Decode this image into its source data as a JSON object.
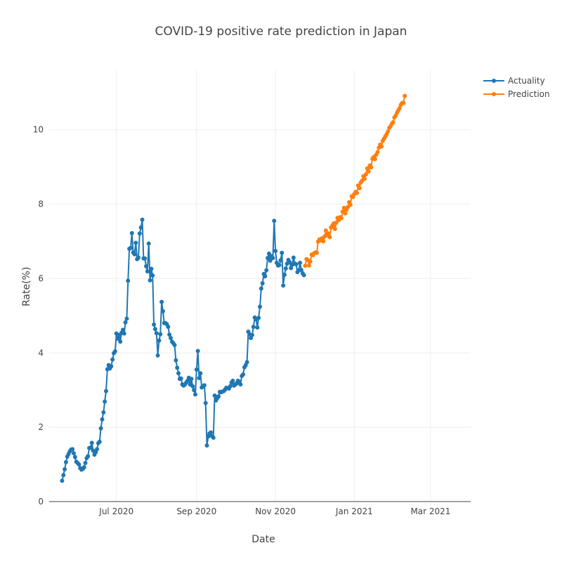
{
  "chart_data": {
    "type": "line",
    "title": "COVID-19 positive rate prediction in Japan",
    "xlabel": "Date",
    "ylabel": "Rate(%)",
    "x_ticks": [
      "Jul 2020",
      "Sep 2020",
      "Nov 2020",
      "Jan 2021",
      "Mar 2021"
    ],
    "y_ticks": [
      0,
      2,
      4,
      6,
      8,
      10
    ],
    "xlim": [
      "2020-05-10",
      "2021-04-01"
    ],
    "ylim": [
      0,
      11.6
    ],
    "grid": true,
    "legend_position": "top-right",
    "series": [
      {
        "name": "Actuality",
        "color": "#1f77b4",
        "points": [
          [
            "2020-05-20",
            0.56
          ],
          [
            "2020-05-21",
            0.71
          ],
          [
            "2020-05-22",
            0.87
          ],
          [
            "2020-05-23",
            1.06
          ],
          [
            "2020-05-24",
            1.21
          ],
          [
            "2020-05-25",
            1.28
          ],
          [
            "2020-05-26",
            1.35
          ],
          [
            "2020-05-27",
            1.4
          ],
          [
            "2020-05-28",
            1.41
          ],
          [
            "2020-05-29",
            1.3
          ],
          [
            "2020-05-30",
            1.2
          ],
          [
            "2020-05-31",
            1.07
          ],
          [
            "2020-06-01",
            1.04
          ],
          [
            "2020-06-02",
            1.0
          ],
          [
            "2020-06-03",
            0.9
          ],
          [
            "2020-06-04",
            0.86
          ],
          [
            "2020-06-05",
            0.88
          ],
          [
            "2020-06-06",
            0.92
          ],
          [
            "2020-06-07",
            1.04
          ],
          [
            "2020-06-08",
            1.17
          ],
          [
            "2020-06-09",
            1.22
          ],
          [
            "2020-06-10",
            1.44
          ],
          [
            "2020-06-11",
            1.45
          ],
          [
            "2020-06-12",
            1.58
          ],
          [
            "2020-06-13",
            1.37
          ],
          [
            "2020-06-14",
            1.26
          ],
          [
            "2020-06-15",
            1.33
          ],
          [
            "2020-06-16",
            1.41
          ],
          [
            "2020-06-17",
            1.57
          ],
          [
            "2020-06-18",
            1.61
          ],
          [
            "2020-06-19",
            1.97
          ],
          [
            "2020-06-20",
            2.21
          ],
          [
            "2020-06-21",
            2.4
          ],
          [
            "2020-06-22",
            2.69
          ],
          [
            "2020-06-23",
            2.97
          ],
          [
            "2020-06-24",
            3.56
          ],
          [
            "2020-06-25",
            3.67
          ],
          [
            "2020-06-26",
            3.58
          ],
          [
            "2020-06-27",
            3.64
          ],
          [
            "2020-06-28",
            3.82
          ],
          [
            "2020-06-29",
            3.99
          ],
          [
            "2020-06-30",
            4.04
          ],
          [
            "2020-07-01",
            4.52
          ],
          [
            "2020-07-02",
            4.38
          ],
          [
            "2020-07-03",
            4.48
          ],
          [
            "2020-07-04",
            4.3
          ],
          [
            "2020-07-05",
            4.54
          ],
          [
            "2020-07-06",
            4.62
          ],
          [
            "2020-07-07",
            4.52
          ],
          [
            "2020-07-08",
            4.82
          ],
          [
            "2020-07-09",
            4.92
          ],
          [
            "2020-07-10",
            5.94
          ],
          [
            "2020-07-11",
            6.8
          ],
          [
            "2020-07-12",
            6.82
          ],
          [
            "2020-07-13",
            7.22
          ],
          [
            "2020-07-14",
            6.7
          ],
          [
            "2020-07-15",
            6.65
          ],
          [
            "2020-07-16",
            6.96
          ],
          [
            "2020-07-17",
            6.52
          ],
          [
            "2020-07-18",
            6.56
          ],
          [
            "2020-07-19",
            7.21
          ],
          [
            "2020-07-20",
            7.37
          ],
          [
            "2020-07-21",
            7.58
          ],
          [
            "2020-07-22",
            6.54
          ],
          [
            "2020-07-23",
            6.54
          ],
          [
            "2020-07-24",
            6.33
          ],
          [
            "2020-07-25",
            6.19
          ],
          [
            "2020-07-26",
            6.94
          ],
          [
            "2020-07-27",
            5.95
          ],
          [
            "2020-07-28",
            6.26
          ],
          [
            "2020-07-29",
            6.08
          ],
          [
            "2020-07-30",
            4.76
          ],
          [
            "2020-07-31",
            4.64
          ],
          [
            "2020-08-01",
            4.53
          ],
          [
            "2020-08-02",
            3.93
          ],
          [
            "2020-08-03",
            4.33
          ],
          [
            "2020-08-04",
            4.5
          ],
          [
            "2020-08-05",
            5.37
          ],
          [
            "2020-08-06",
            5.12
          ],
          [
            "2020-08-07",
            4.8
          ],
          [
            "2020-08-08",
            4.8
          ],
          [
            "2020-08-09",
            4.77
          ],
          [
            "2020-08-10",
            4.7
          ],
          [
            "2020-08-11",
            4.49
          ],
          [
            "2020-08-12",
            4.4
          ],
          [
            "2020-08-13",
            4.3
          ],
          [
            "2020-08-14",
            4.26
          ],
          [
            "2020-08-15",
            4.21
          ],
          [
            "2020-08-16",
            3.8
          ],
          [
            "2020-08-17",
            3.6
          ],
          [
            "2020-08-18",
            3.45
          ],
          [
            "2020-08-19",
            3.3
          ],
          [
            "2020-08-20",
            3.31
          ],
          [
            "2020-08-21",
            3.15
          ],
          [
            "2020-08-22",
            3.12
          ],
          [
            "2020-08-23",
            3.15
          ],
          [
            "2020-08-24",
            3.2
          ],
          [
            "2020-08-25",
            3.25
          ],
          [
            "2020-08-26",
            3.33
          ],
          [
            "2020-08-27",
            3.15
          ],
          [
            "2020-08-28",
            3.3
          ],
          [
            "2020-08-29",
            3.1
          ],
          [
            "2020-08-30",
            3.0
          ],
          [
            "2020-08-31",
            2.88
          ],
          [
            "2020-09-01",
            3.55
          ],
          [
            "2020-09-02",
            4.05
          ],
          [
            "2020-09-03",
            3.32
          ],
          [
            "2020-09-04",
            3.45
          ],
          [
            "2020-09-05",
            3.07
          ],
          [
            "2020-09-06",
            3.1
          ],
          [
            "2020-09-07",
            3.13
          ],
          [
            "2020-09-08",
            2.65
          ],
          [
            "2020-09-09",
            1.51
          ],
          [
            "2020-09-10",
            1.75
          ],
          [
            "2020-09-11",
            1.83
          ],
          [
            "2020-09-12",
            1.86
          ],
          [
            "2020-09-13",
            1.76
          ],
          [
            "2020-09-14",
            1.72
          ],
          [
            "2020-09-15",
            2.85
          ],
          [
            "2020-09-16",
            2.72
          ],
          [
            "2020-09-17",
            2.78
          ],
          [
            "2020-09-18",
            2.83
          ],
          [
            "2020-09-19",
            2.95
          ],
          [
            "2020-09-20",
            2.94
          ],
          [
            "2020-09-21",
            2.96
          ],
          [
            "2020-09-22",
            2.97
          ],
          [
            "2020-09-23",
            3.01
          ],
          [
            "2020-09-24",
            3.06
          ],
          [
            "2020-09-25",
            3.05
          ],
          [
            "2020-09-26",
            3.04
          ],
          [
            "2020-09-27",
            3.1
          ],
          [
            "2020-09-28",
            3.2
          ],
          [
            "2020-09-29",
            3.25
          ],
          [
            "2020-09-30",
            3.12
          ],
          [
            "2020-10-01",
            3.15
          ],
          [
            "2020-10-02",
            3.18
          ],
          [
            "2020-10-03",
            3.25
          ],
          [
            "2020-10-04",
            3.22
          ],
          [
            "2020-10-05",
            3.15
          ],
          [
            "2020-10-06",
            3.38
          ],
          [
            "2020-10-07",
            3.42
          ],
          [
            "2020-10-08",
            3.61
          ],
          [
            "2020-10-09",
            3.67
          ],
          [
            "2020-10-10",
            3.75
          ],
          [
            "2020-10-11",
            4.57
          ],
          [
            "2020-10-12",
            4.5
          ],
          [
            "2020-10-13",
            4.4
          ],
          [
            "2020-10-14",
            4.48
          ],
          [
            "2020-10-15",
            4.7
          ],
          [
            "2020-10-16",
            4.95
          ],
          [
            "2020-10-17",
            4.9
          ],
          [
            "2020-10-18",
            4.68
          ],
          [
            "2020-10-19",
            4.94
          ],
          [
            "2020-10-20",
            5.24
          ],
          [
            "2020-10-21",
            5.73
          ],
          [
            "2020-10-22",
            5.87
          ],
          [
            "2020-10-23",
            6.12
          ],
          [
            "2020-10-24",
            6.06
          ],
          [
            "2020-10-25",
            6.22
          ],
          [
            "2020-10-26",
            6.55
          ],
          [
            "2020-10-27",
            6.67
          ],
          [
            "2020-10-28",
            6.48
          ],
          [
            "2020-10-29",
            6.6
          ],
          [
            "2020-10-30",
            6.55
          ],
          [
            "2020-10-31",
            7.55
          ],
          [
            "2020-11-01",
            6.74
          ],
          [
            "2020-11-02",
            6.42
          ],
          [
            "2020-11-03",
            6.35
          ],
          [
            "2020-11-04",
            6.36
          ],
          [
            "2020-11-05",
            6.49
          ],
          [
            "2020-11-06",
            6.69
          ],
          [
            "2020-11-07",
            5.81
          ],
          [
            "2020-11-08",
            6.1
          ],
          [
            "2020-11-09",
            6.27
          ],
          [
            "2020-11-10",
            6.4
          ],
          [
            "2020-11-11",
            6.5
          ],
          [
            "2020-11-12",
            6.44
          ],
          [
            "2020-11-13",
            6.28
          ],
          [
            "2020-11-14",
            6.37
          ],
          [
            "2020-11-15",
            6.56
          ],
          [
            "2020-11-16",
            6.4
          ],
          [
            "2020-11-17",
            6.38
          ],
          [
            "2020-11-18",
            6.17
          ],
          [
            "2020-11-19",
            6.22
          ],
          [
            "2020-11-20",
            6.42
          ],
          [
            "2020-11-21",
            6.23
          ],
          [
            "2020-11-22",
            6.14
          ],
          [
            "2020-11-23",
            6.09
          ]
        ]
      },
      {
        "name": "Prediction",
        "color": "#ff7f0e",
        "points": [
          [
            "2020-11-24",
            6.34
          ],
          [
            "2020-11-25",
            6.52
          ],
          [
            "2020-11-26",
            6.5
          ],
          [
            "2020-11-27",
            6.35
          ],
          [
            "2020-11-28",
            6.46
          ],
          [
            "2020-11-29",
            6.64
          ],
          [
            "2020-11-30",
            6.63
          ],
          [
            "2020-12-01",
            6.68
          ],
          [
            "2020-12-02",
            6.7
          ],
          [
            "2020-12-03",
            6.69
          ],
          [
            "2020-12-04",
            6.99
          ],
          [
            "2020-12-05",
            7.05
          ],
          [
            "2020-12-06",
            7.02
          ],
          [
            "2020-12-07",
            7.08
          ],
          [
            "2020-12-08",
            7.0
          ],
          [
            "2020-12-09",
            7.13
          ],
          [
            "2020-12-10",
            7.29
          ],
          [
            "2020-12-11",
            7.16
          ],
          [
            "2020-12-12",
            7.21
          ],
          [
            "2020-12-13",
            7.11
          ],
          [
            "2020-12-14",
            7.37
          ],
          [
            "2020-12-15",
            7.42
          ],
          [
            "2020-12-16",
            7.48
          ],
          [
            "2020-12-17",
            7.33
          ],
          [
            "2020-12-18",
            7.5
          ],
          [
            "2020-12-19",
            7.63
          ],
          [
            "2020-12-20",
            7.57
          ],
          [
            "2020-12-21",
            7.65
          ],
          [
            "2020-12-22",
            7.62
          ],
          [
            "2020-12-23",
            7.8
          ],
          [
            "2020-12-24",
            7.9
          ],
          [
            "2020-12-25",
            7.75
          ],
          [
            "2020-12-26",
            7.85
          ],
          [
            "2020-12-27",
            7.92
          ],
          [
            "2020-12-28",
            8.05
          ],
          [
            "2020-12-29",
            7.98
          ],
          [
            "2020-12-30",
            8.21
          ],
          [
            "2020-12-31",
            8.19
          ],
          [
            "2021-01-01",
            8.27
          ],
          [
            "2021-01-02",
            8.33
          ],
          [
            "2021-01-03",
            8.3
          ],
          [
            "2021-01-04",
            8.5
          ],
          [
            "2021-01-05",
            8.43
          ],
          [
            "2021-01-06",
            8.58
          ],
          [
            "2021-01-07",
            8.63
          ],
          [
            "2021-01-08",
            8.75
          ],
          [
            "2021-01-09",
            8.68
          ],
          [
            "2021-01-10",
            8.8
          ],
          [
            "2021-01-11",
            8.96
          ],
          [
            "2021-01-12",
            8.88
          ],
          [
            "2021-01-13",
            9.04
          ],
          [
            "2021-01-14",
            8.99
          ],
          [
            "2021-01-15",
            9.22
          ],
          [
            "2021-01-16",
            9.27
          ],
          [
            "2021-01-17",
            9.21
          ],
          [
            "2021-01-18",
            9.33
          ],
          [
            "2021-01-19",
            9.4
          ],
          [
            "2021-01-20",
            9.52
          ],
          [
            "2021-01-21",
            9.6
          ],
          [
            "2021-01-22",
            9.55
          ],
          [
            "2021-01-23",
            9.7
          ],
          [
            "2021-01-24",
            9.76
          ],
          [
            "2021-01-25",
            9.82
          ],
          [
            "2021-01-26",
            9.88
          ],
          [
            "2021-01-27",
            9.95
          ],
          [
            "2021-01-28",
            10.05
          ],
          [
            "2021-01-29",
            10.09
          ],
          [
            "2021-01-30",
            10.16
          ],
          [
            "2021-01-31",
            10.2
          ],
          [
            "2021-02-01",
            10.33
          ],
          [
            "2021-02-02",
            10.38
          ],
          [
            "2021-02-03",
            10.46
          ],
          [
            "2021-02-04",
            10.52
          ],
          [
            "2021-02-05",
            10.58
          ],
          [
            "2021-02-06",
            10.67
          ],
          [
            "2021-02-07",
            10.72
          ],
          [
            "2021-02-08",
            10.72
          ],
          [
            "2021-02-09",
            10.91
          ]
        ]
      }
    ]
  }
}
